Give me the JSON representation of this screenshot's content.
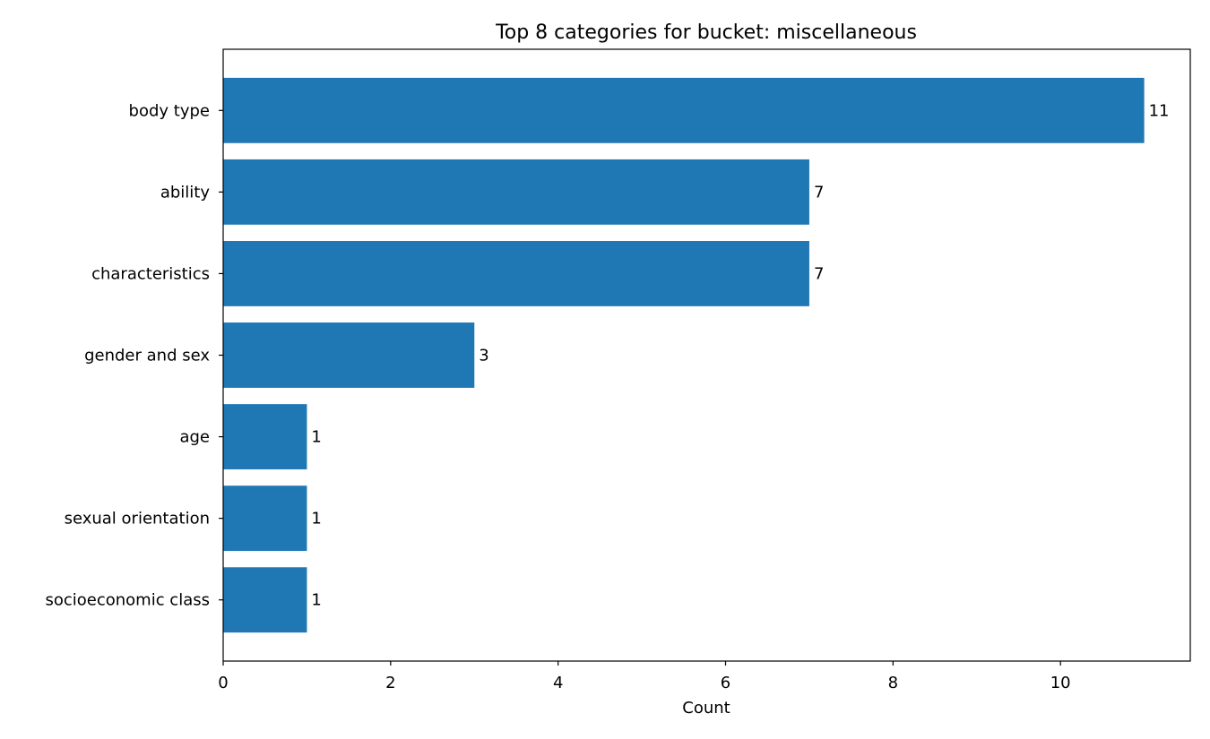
{
  "chart_data": {
    "type": "bar",
    "orientation": "horizontal",
    "title": "Top 8 categories for bucket: miscellaneous",
    "xlabel": "Count",
    "ylabel": "",
    "categories": [
      "body type",
      "ability",
      "characteristics",
      "gender and sex",
      "age",
      "sexual orientation",
      "socioeconomic class"
    ],
    "values": [
      11,
      7,
      7,
      3,
      1,
      1,
      1
    ],
    "data_labels": [
      "11",
      "7",
      "7",
      "3",
      "1",
      "1",
      "1"
    ],
    "xlim": [
      0,
      11.55
    ],
    "xticks": [
      0,
      2,
      4,
      6,
      8,
      10
    ],
    "xtick_labels": [
      "0",
      "2",
      "4",
      "6",
      "8",
      "10"
    ],
    "grid": false,
    "legend": "none",
    "bar_color": "#1f77b4"
  }
}
